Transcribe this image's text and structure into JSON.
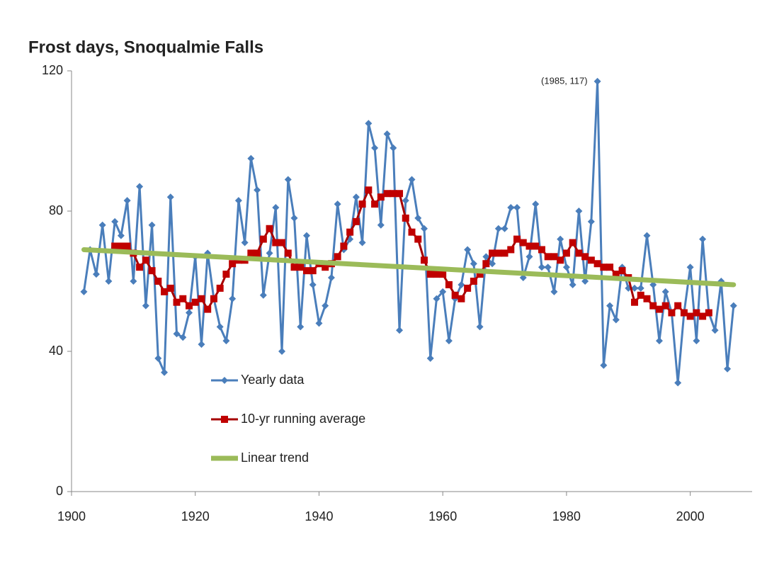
{
  "chart_data": {
    "type": "line",
    "title": "Frost days, Snoqualmie Falls",
    "annotations": [
      {
        "text": "(1985, 117)",
        "x": 1985,
        "y": 117
      }
    ],
    "xlim": [
      1900,
      2010
    ],
    "xticks": [
      1900,
      1920,
      1940,
      1960,
      1980,
      2000
    ],
    "ylim": [
      0,
      120
    ],
    "yticks": [
      0,
      40,
      80,
      120
    ],
    "grid": false,
    "legend": "inside",
    "series": [
      {
        "name": "Yearly data",
        "color": "#4a7ebb",
        "marker": "diamond",
        "x": [
          1902,
          1903,
          1904,
          1905,
          1906,
          1907,
          1908,
          1909,
          1910,
          1911,
          1912,
          1913,
          1914,
          1915,
          1916,
          1917,
          1918,
          1919,
          1920,
          1921,
          1922,
          1923,
          1924,
          1925,
          1926,
          1927,
          1928,
          1929,
          1930,
          1931,
          1932,
          1933,
          1934,
          1935,
          1936,
          1937,
          1938,
          1939,
          1940,
          1941,
          1942,
          1943,
          1944,
          1945,
          1946,
          1947,
          1948,
          1949,
          1950,
          1951,
          1952,
          1953,
          1954,
          1955,
          1956,
          1957,
          1958,
          1959,
          1960,
          1961,
          1962,
          1963,
          1964,
          1965,
          1966,
          1967,
          1968,
          1969,
          1970,
          1971,
          1972,
          1973,
          1974,
          1975,
          1976,
          1977,
          1978,
          1979,
          1980,
          1981,
          1982,
          1983,
          1984,
          1985,
          1986,
          1987,
          1988,
          1989,
          1990,
          1991,
          1992,
          1993,
          1994,
          1995,
          1996,
          1997,
          1998,
          1999,
          2000,
          2001,
          2002,
          2003,
          2004,
          2005,
          2006,
          2007
        ],
        "values": [
          57,
          69,
          62,
          76,
          60,
          77,
          73,
          83,
          60,
          87,
          53,
          76,
          38,
          34,
          84,
          45,
          44,
          51,
          67,
          42,
          68,
          55,
          47,
          43,
          55,
          83,
          71,
          95,
          86,
          56,
          68,
          81,
          40,
          89,
          78,
          47,
          73,
          59,
          48,
          53,
          61,
          82,
          69,
          72,
          84,
          71,
          105,
          98,
          76,
          102,
          98,
          46,
          83,
          89,
          78,
          75,
          38,
          55,
          57,
          43,
          55,
          59,
          69,
          65,
          47,
          67,
          65,
          75,
          75,
          81,
          81,
          61,
          67,
          82,
          64,
          64,
          57,
          72,
          64,
          59,
          80,
          60,
          77,
          117,
          36,
          53,
          49,
          64,
          58,
          58,
          58,
          73,
          59,
          43,
          57,
          51,
          31,
          51,
          64,
          43,
          72,
          51,
          46,
          60,
          35,
          53
        ]
      },
      {
        "name": "10-yr running average",
        "color": "#c00000",
        "marker": "square",
        "x": [
          1907,
          1908,
          1909,
          1910,
          1911,
          1912,
          1913,
          1914,
          1915,
          1916,
          1917,
          1918,
          1919,
          1920,
          1921,
          1922,
          1923,
          1924,
          1925,
          1926,
          1927,
          1928,
          1929,
          1930,
          1931,
          1932,
          1933,
          1934,
          1935,
          1936,
          1937,
          1938,
          1939,
          1940,
          1941,
          1942,
          1943,
          1944,
          1945,
          1946,
          1947,
          1948,
          1949,
          1950,
          1951,
          1952,
          1953,
          1954,
          1955,
          1956,
          1957,
          1958,
          1959,
          1960,
          1961,
          1962,
          1963,
          1964,
          1965,
          1966,
          1967,
          1968,
          1969,
          1970,
          1971,
          1972,
          1973,
          1974,
          1975,
          1976,
          1977,
          1978,
          1979,
          1980,
          1981,
          1982,
          1983,
          1984,
          1985,
          1986,
          1987,
          1988,
          1989,
          1990,
          1991,
          1992,
          1993,
          1994,
          1995,
          1996,
          1997,
          1998,
          1999,
          2000,
          2001,
          2002,
          2003
        ],
        "values": [
          70,
          70,
          70,
          68,
          64,
          66,
          63,
          60,
          57,
          58,
          54,
          55,
          53,
          54,
          55,
          52,
          55,
          58,
          62,
          65,
          66,
          66,
          68,
          68,
          72,
          75,
          71,
          71,
          68,
          64,
          64,
          63,
          63,
          65,
          64,
          65,
          67,
          70,
          74,
          77,
          82,
          86,
          82,
          84,
          85,
          85,
          85,
          78,
          74,
          72,
          66,
          62,
          62,
          62,
          59,
          56,
          55,
          58,
          60,
          62,
          65,
          68,
          68,
          68,
          69,
          72,
          71,
          70,
          70,
          69,
          67,
          67,
          66,
          68,
          71,
          68,
          67,
          66,
          65,
          64,
          64,
          62,
          63,
          61,
          54,
          56,
          55,
          53,
          52,
          53,
          51,
          53,
          51,
          50,
          51,
          50,
          51
        ]
      },
      {
        "name": "Linear trend",
        "color": "#9bbb59",
        "marker": "none",
        "x": [
          1902,
          2007
        ],
        "values": [
          69,
          59
        ]
      }
    ]
  }
}
